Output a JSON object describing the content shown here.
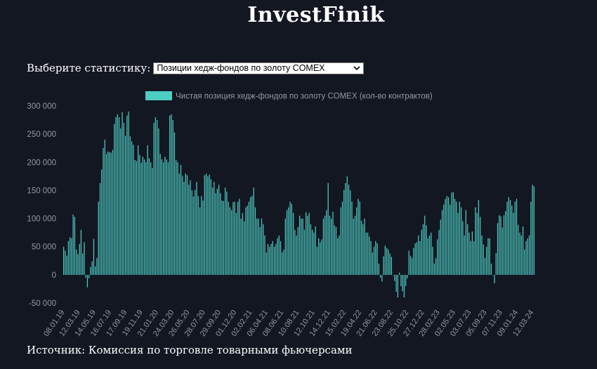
{
  "header": {
    "title": "InvestFinik"
  },
  "selector": {
    "label": "Выберите статистику:",
    "selected": "Позиции хедж-фондов по золоту COMEX"
  },
  "footer": {
    "source": "Источник: Комиссия по торговле товарными фьючерсами"
  },
  "colors": {
    "background": "#131722",
    "bar": "#4ecdc4",
    "text": "#9598a1",
    "title": "#ffffff"
  },
  "icons": {
    "dropdown": "chevron-down-icon"
  },
  "chart_data": {
    "type": "bar",
    "legend": {
      "label": "Чистая позиция хедж-фондов по золоту COMEX (кол-во контрактов)",
      "position": "top"
    },
    "y_ticks": [
      "300 000",
      "250 000",
      "200 000",
      "150 000",
      "100 000",
      "50 000",
      "0",
      "-50 000"
    ],
    "ylim": [
      -50000,
      300000
    ],
    "x_tick_labels": [
      "08.01.19",
      "12.03.19",
      "14.05.19",
      "16.07.19",
      "17.09.19",
      "19.11.19",
      "21.01.20",
      "24.03.20",
      "26.05.20",
      "28.07.20",
      "29.09.20",
      "01.12.20",
      "02.02.21",
      "06.04.21",
      "08.06.21",
      "10.08.21",
      "12.10.21",
      "14.12.21",
      "15.02.22",
      "19.04.22",
      "21.06.22",
      "23.08.22",
      "25.10.22",
      "27.12.22",
      "28.02.23",
      "02.05.23",
      "03.07.23",
      "05.09.23",
      "07.11.23",
      "09.01.24",
      "12.03.24"
    ],
    "grid": false,
    "values": [
      50000,
      43000,
      34000,
      60000,
      67000,
      65000,
      107000,
      103000,
      45000,
      37000,
      55000,
      80000,
      38000,
      58000,
      -5000,
      -22000,
      -6000,
      14000,
      24000,
      64000,
      15000,
      30000,
      130000,
      163000,
      187000,
      225000,
      240000,
      215000,
      219000,
      218000,
      217000,
      222000,
      268000,
      280000,
      285000,
      280000,
      260000,
      289000,
      270000,
      247000,
      283000,
      290000,
      246000,
      237000,
      231000,
      204000,
      202000,
      230000,
      213000,
      199000,
      210000,
      205000,
      200000,
      230000,
      207000,
      200000,
      190000,
      270000,
      280000,
      275000,
      260000,
      215000,
      205000,
      200000,
      210000,
      205000,
      200000,
      283000,
      285000,
      275000,
      253000,
      204000,
      200000,
      180000,
      195000,
      176000,
      165000,
      180000,
      177000,
      160000,
      168000,
      150000,
      139000,
      151000,
      165000,
      140000,
      120000,
      140000,
      132000,
      177000,
      180000,
      175000,
      178000,
      170000,
      155000,
      165000,
      145000,
      153000,
      160000,
      145000,
      132000,
      131000,
      155000,
      148000,
      130000,
      120000,
      115000,
      129000,
      130000,
      110000,
      130000,
      135000,
      100000,
      110000,
      95000,
      120000,
      123000,
      130000,
      138000,
      140000,
      155000,
      120000,
      100000,
      100000,
      85000,
      100000,
      90000,
      70000,
      40000,
      55000,
      50000,
      55000,
      60000,
      50000,
      55000,
      65000,
      70000,
      60000,
      40000,
      45000,
      100000,
      115000,
      120000,
      130000,
      126000,
      110000,
      80000,
      70000,
      85000,
      105000,
      100000,
      100000,
      80000,
      111000,
      105000,
      110000,
      90000,
      80000,
      75000,
      86000,
      50000,
      65000,
      58000,
      63000,
      100000,
      105000,
      115000,
      163000,
      105000,
      100000,
      112000,
      88000,
      85000,
      65000,
      70000,
      120000,
      130000,
      151000,
      163000,
      175000,
      160000,
      150000,
      130000,
      100000,
      105000,
      120000,
      135000,
      130000,
      96000,
      90000,
      100000,
      75000,
      75000,
      68000,
      60000,
      40000,
      50000,
      60000,
      56000,
      20000,
      -5000,
      -12000,
      33000,
      52000,
      48000,
      45000,
      38000,
      32000,
      0,
      -11000,
      -30000,
      -40000,
      4000,
      -20000,
      -29000,
      -40000,
      -20000,
      -6000,
      43000,
      34000,
      30000,
      48000,
      56000,
      58000,
      70000,
      60000,
      80000,
      90000,
      105000,
      88000,
      65000,
      70000,
      75000,
      50000,
      20000,
      30000,
      63000,
      80000,
      98000,
      115000,
      125000,
      135000,
      140000,
      138000,
      125000,
      146000,
      147000,
      135000,
      130000,
      110000,
      130000,
      120000,
      95000,
      70000,
      115000,
      90000,
      75000,
      60000,
      77000,
      60000,
      120000,
      110000,
      133000,
      103000,
      70000,
      54000,
      30000,
      50000,
      65000,
      65000,
      20000,
      0,
      -15000,
      39000,
      92000,
      106000,
      104000,
      84000,
      106000,
      113000,
      130000,
      138000,
      133000,
      123000,
      110000,
      130000,
      135000,
      89000,
      75000,
      70000,
      86000,
      45000,
      60000,
      65000,
      70000,
      130000,
      160000,
      157000
    ]
  }
}
